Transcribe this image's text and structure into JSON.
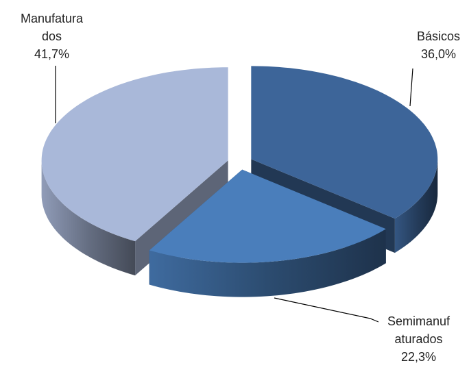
{
  "chart_data": {
    "type": "pie3d",
    "categories": [
      "Básicos",
      "Semimanufaturados",
      "Manufaturados"
    ],
    "values": [
      36.0,
      22.3,
      41.7
    ],
    "value_labels": [
      "36,0%",
      "22,3%",
      "41,7%"
    ],
    "colors": [
      "#3d6599",
      "#4a7ebb",
      "#a9b8d9"
    ]
  }
}
